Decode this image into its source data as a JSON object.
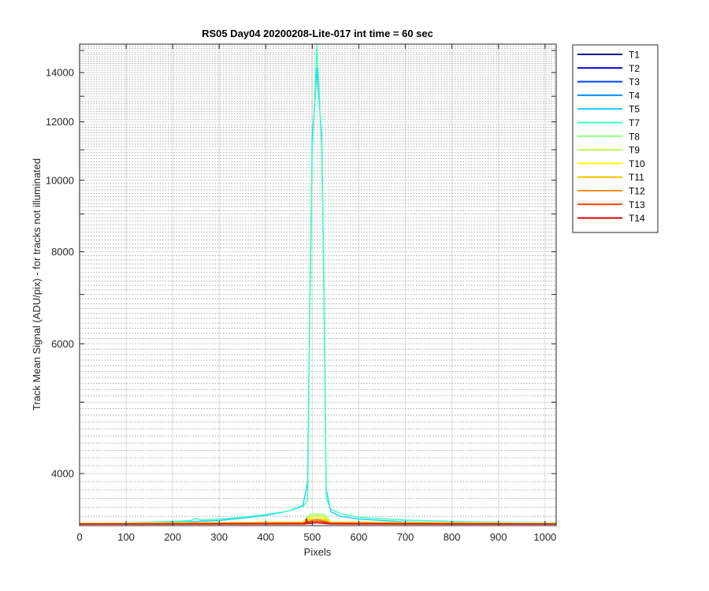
{
  "chart_data": {
    "type": "line",
    "title": "RS05 Day04 20200208-Lite-017 int time = 60 sec",
    "xlabel": "Pixels",
    "ylabel": "Track Mean Signal (ADU/pix) - for tracks not illuminated",
    "xlim": [
      0,
      1024
    ],
    "ylim": [
      3400,
      15300
    ],
    "yscale": "log",
    "grid": true,
    "minor_grid": true,
    "legend_position": "outside-top-right",
    "x_ticks": [
      0,
      100,
      200,
      300,
      400,
      500,
      600,
      700,
      800,
      900,
      1000
    ],
    "y_ticks": [
      4000,
      6000,
      8000,
      10000,
      12000,
      14000
    ],
    "x_tick_labels": [
      "0",
      "100",
      "200",
      "300",
      "400",
      "500",
      "600",
      "700",
      "800",
      "900",
      "1000"
    ],
    "y_tick_labels": [
      "4000",
      "6000",
      "8000",
      "10000",
      "12000",
      "14000"
    ],
    "series": [
      {
        "name": "T1",
        "color": "#00008F",
        "x": [
          0,
          480,
          500,
          510,
          520,
          540,
          1024
        ],
        "y": [
          3420,
          3425,
          3440,
          3445,
          3440,
          3425,
          3420
        ]
      },
      {
        "name": "T2",
        "color": "#0000E0",
        "x": [
          0,
          480,
          500,
          510,
          520,
          540,
          1024
        ],
        "y": [
          3422,
          3427,
          3445,
          3450,
          3445,
          3427,
          3422
        ]
      },
      {
        "name": "T3",
        "color": "#0040FF",
        "x": [
          0,
          480,
          500,
          510,
          520,
          540,
          1024
        ],
        "y": [
          3424,
          3430,
          3450,
          3455,
          3450,
          3430,
          3424
        ]
      },
      {
        "name": "T4",
        "color": "#0090FF",
        "x": [
          0,
          480,
          500,
          510,
          520,
          540,
          1024
        ],
        "y": [
          3426,
          3432,
          3455,
          3460,
          3455,
          3432,
          3426
        ]
      },
      {
        "name": "T5",
        "color": "#10CFFF",
        "x": [
          0,
          100,
          200,
          300,
          350,
          400,
          450,
          480,
          490,
          495,
          500,
          505,
          510,
          515,
          520,
          525,
          530,
          540,
          560,
          600,
          700,
          800,
          900,
          1024
        ],
        "y": [
          3420,
          3425,
          3435,
          3455,
          3480,
          3510,
          3560,
          3620,
          3900,
          7000,
          11500,
          12600,
          14200,
          12700,
          11600,
          7200,
          3800,
          3550,
          3500,
          3470,
          3440,
          3430,
          3425,
          3420
        ]
      },
      {
        "name": "T7",
        "color": "#40FFBF",
        "x": [
          0,
          100,
          200,
          240,
          250,
          260,
          300,
          350,
          400,
          450,
          480,
          490,
          495,
          500,
          505,
          510,
          515,
          520,
          525,
          530,
          540,
          560,
          600,
          700,
          800,
          900,
          1024
        ],
        "y": [
          3425,
          3430,
          3445,
          3455,
          3480,
          3460,
          3470,
          3490,
          3520,
          3560,
          3610,
          3680,
          6800,
          11000,
          12800,
          15300,
          13000,
          11200,
          7000,
          3700,
          3580,
          3530,
          3490,
          3460,
          3445,
          3435,
          3430
        ]
      },
      {
        "name": "T8",
        "color": "#90FF80",
        "x": [
          0,
          480,
          495,
          510,
          525,
          540,
          1024
        ],
        "y": [
          3425,
          3440,
          3520,
          3530,
          3520,
          3440,
          3425
        ]
      },
      {
        "name": "T9",
        "color": "#C0FF40",
        "x": [
          0,
          480,
          495,
          510,
          525,
          540,
          1024
        ],
        "y": [
          3424,
          3436,
          3500,
          3510,
          3500,
          3436,
          3424
        ]
      },
      {
        "name": "T10",
        "color": "#FFFF00",
        "x": [
          0,
          480,
          495,
          510,
          525,
          540,
          1024
        ],
        "y": [
          3422,
          3432,
          3480,
          3490,
          3480,
          3432,
          3422
        ]
      },
      {
        "name": "T11",
        "color": "#FFBF00",
        "x": [
          0,
          480,
          495,
          510,
          525,
          540,
          1024
        ],
        "y": [
          3421,
          3430,
          3465,
          3470,
          3465,
          3430,
          3421
        ]
      },
      {
        "name": "T12",
        "color": "#FF8F00",
        "x": [
          0,
          480,
          495,
          510,
          525,
          540,
          1024
        ],
        "y": [
          3420,
          3428,
          3450,
          3455,
          3450,
          3428,
          3420
        ]
      },
      {
        "name": "T13",
        "color": "#FF4000",
        "x": [
          0,
          480,
          495,
          510,
          525,
          540,
          1024
        ],
        "y": [
          3418,
          3425,
          3440,
          3445,
          3440,
          3425,
          3418
        ]
      },
      {
        "name": "T14",
        "color": "#E00000",
        "x": [
          0,
          486,
          487,
          488,
          489,
          500,
          510,
          520,
          530,
          540,
          1024
        ],
        "y": [
          3415,
          3418,
          3470,
          3470,
          3420,
          3425,
          3430,
          3425,
          3420,
          3418,
          3415
        ]
      }
    ]
  }
}
